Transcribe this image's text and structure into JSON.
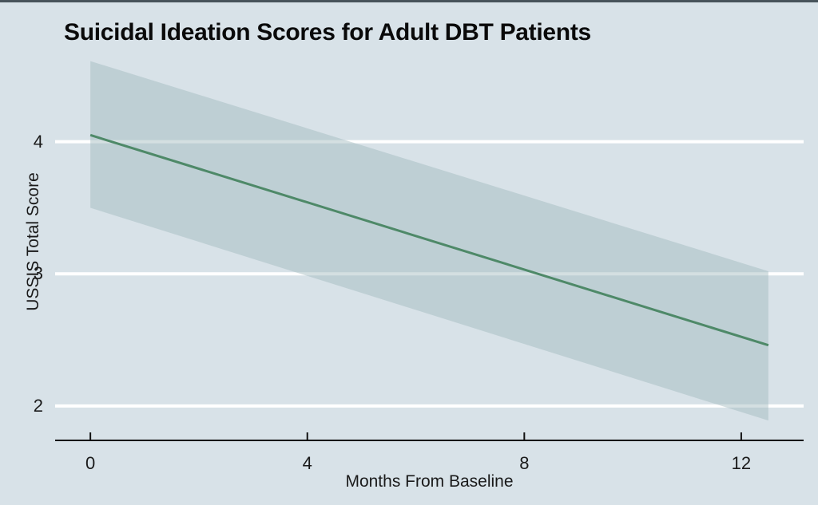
{
  "chart_data": {
    "type": "line",
    "title": "Suicidal Ideation Scores for Adult DBT Patients",
    "xlabel": "Months From Baseline",
    "ylabel": "USSIS Total Score",
    "x": [
      0,
      12.5
    ],
    "series": [
      {
        "name": "fitted_line",
        "values": [
          4.05,
          2.46
        ]
      },
      {
        "name": "ci_upper",
        "values": [
          4.61,
          3.02
        ]
      },
      {
        "name": "ci_lower",
        "values": [
          3.5,
          1.89
        ]
      }
    ],
    "x_ticks": [
      0,
      4,
      8,
      12
    ],
    "y_ticks": [
      2,
      3,
      4
    ],
    "xlim": [
      -0.65,
      13.15
    ],
    "ylim": [
      1.74,
      4.68
    ],
    "grid": "horizontal-white-gridlines",
    "legend_position": "none",
    "colors": {
      "background": "#d8e2e8",
      "window_edge": "#47535a",
      "gridline": "#ffffff",
      "band_fill": "rgba(160,184,189,0.45)",
      "line": "#4e8968",
      "axis": "#111111",
      "text": "#1a1a1a"
    }
  }
}
